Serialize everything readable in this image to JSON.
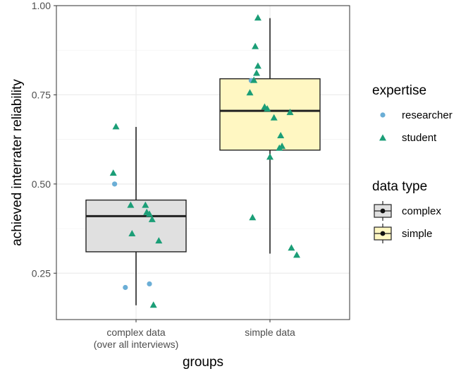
{
  "chart_data": {
    "type": "boxplot",
    "xlabel": "groups",
    "ylabel": "achieved interrater reliability",
    "ylim": [
      0.12,
      1.0
    ],
    "yticks": [
      "0.25",
      "0.50",
      "0.75",
      "1.00"
    ],
    "grid": true,
    "categories": [
      {
        "id": "complex",
        "label_lines": [
          "complex data",
          "(over all interviews)"
        ]
      },
      {
        "id": "simple",
        "label_lines": [
          "simple data"
        ]
      }
    ],
    "boxes": [
      {
        "group": "complex",
        "data_type": "complex",
        "whisker_low": 0.16,
        "q1": 0.31,
        "median": 0.41,
        "q3": 0.455,
        "whisker_high": 0.66
      },
      {
        "group": "simple",
        "data_type": "simple",
        "whisker_low": 0.305,
        "q1": 0.595,
        "median": 0.705,
        "q3": 0.795,
        "whisker_high": 0.965
      }
    ],
    "points": [
      {
        "group": "complex",
        "expertise": "student",
        "y": 0.66,
        "jitter": -0.15
      },
      {
        "group": "complex",
        "expertise": "student",
        "y": 0.53,
        "jitter": -0.17
      },
      {
        "group": "complex",
        "expertise": "researcher",
        "y": 0.5,
        "jitter": -0.16
      },
      {
        "group": "complex",
        "expertise": "student",
        "y": 0.44,
        "jitter": -0.04
      },
      {
        "group": "complex",
        "expertise": "student",
        "y": 0.44,
        "jitter": 0.07
      },
      {
        "group": "complex",
        "expertise": "student",
        "y": 0.42,
        "jitter": 0.08
      },
      {
        "group": "complex",
        "expertise": "student",
        "y": 0.415,
        "jitter": 0.1
      },
      {
        "group": "complex",
        "expertise": "student",
        "y": 0.4,
        "jitter": 0.12
      },
      {
        "group": "complex",
        "expertise": "student",
        "y": 0.36,
        "jitter": -0.03
      },
      {
        "group": "complex",
        "expertise": "student",
        "y": 0.34,
        "jitter": 0.17
      },
      {
        "group": "complex",
        "expertise": "researcher",
        "y": 0.21,
        "jitter": -0.08
      },
      {
        "group": "complex",
        "expertise": "researcher",
        "y": 0.22,
        "jitter": 0.1
      },
      {
        "group": "complex",
        "expertise": "student",
        "y": 0.16,
        "jitter": 0.13
      },
      {
        "group": "simple",
        "expertise": "student",
        "y": 0.965,
        "jitter": -0.09
      },
      {
        "group": "simple",
        "expertise": "student",
        "y": 0.885,
        "jitter": -0.11
      },
      {
        "group": "simple",
        "expertise": "student",
        "y": 0.83,
        "jitter": -0.09
      },
      {
        "group": "simple",
        "expertise": "student",
        "y": 0.81,
        "jitter": -0.1
      },
      {
        "group": "simple",
        "expertise": "researcher",
        "y": 0.79,
        "jitter": -0.14
      },
      {
        "group": "simple",
        "expertise": "student",
        "y": 0.79,
        "jitter": -0.12
      },
      {
        "group": "simple",
        "expertise": "student",
        "y": 0.755,
        "jitter": -0.15
      },
      {
        "group": "simple",
        "expertise": "student",
        "y": 0.715,
        "jitter": -0.04
      },
      {
        "group": "simple",
        "expertise": "student",
        "y": 0.71,
        "jitter": -0.02
      },
      {
        "group": "simple",
        "expertise": "student",
        "y": 0.7,
        "jitter": 0.15
      },
      {
        "group": "simple",
        "expertise": "student",
        "y": 0.685,
        "jitter": 0.03
      },
      {
        "group": "simple",
        "expertise": "student",
        "y": 0.635,
        "jitter": 0.08
      },
      {
        "group": "simple",
        "expertise": "student",
        "y": 0.605,
        "jitter": 0.09
      },
      {
        "group": "simple",
        "expertise": "student",
        "y": 0.6,
        "jitter": 0.07
      },
      {
        "group": "simple",
        "expertise": "student",
        "y": 0.575,
        "jitter": 0.0
      },
      {
        "group": "simple",
        "expertise": "student",
        "y": 0.405,
        "jitter": -0.13
      },
      {
        "group": "simple",
        "expertise": "student",
        "y": 0.32,
        "jitter": 0.16
      },
      {
        "group": "simple",
        "expertise": "student",
        "y": 0.3,
        "jitter": 0.2
      }
    ],
    "legends": [
      {
        "title": "expertise",
        "items": [
          {
            "label": "researcher",
            "shape": "circle",
            "color": "#6baed6"
          },
          {
            "label": "student",
            "shape": "triangle",
            "color": "#1b9e77"
          }
        ]
      },
      {
        "title": "data type",
        "items": [
          {
            "label": "complex",
            "fill": "#e0e0e0"
          },
          {
            "label": "simple",
            "fill": "#fff7c2"
          }
        ]
      }
    ],
    "colors": {
      "researcher": "#6baed6",
      "student": "#1b9e77",
      "complex_fill": "#e0e0e0",
      "simple_fill": "#fff7c2",
      "grid": "#ebebeb",
      "axis_text": "#4d4d4d"
    }
  }
}
